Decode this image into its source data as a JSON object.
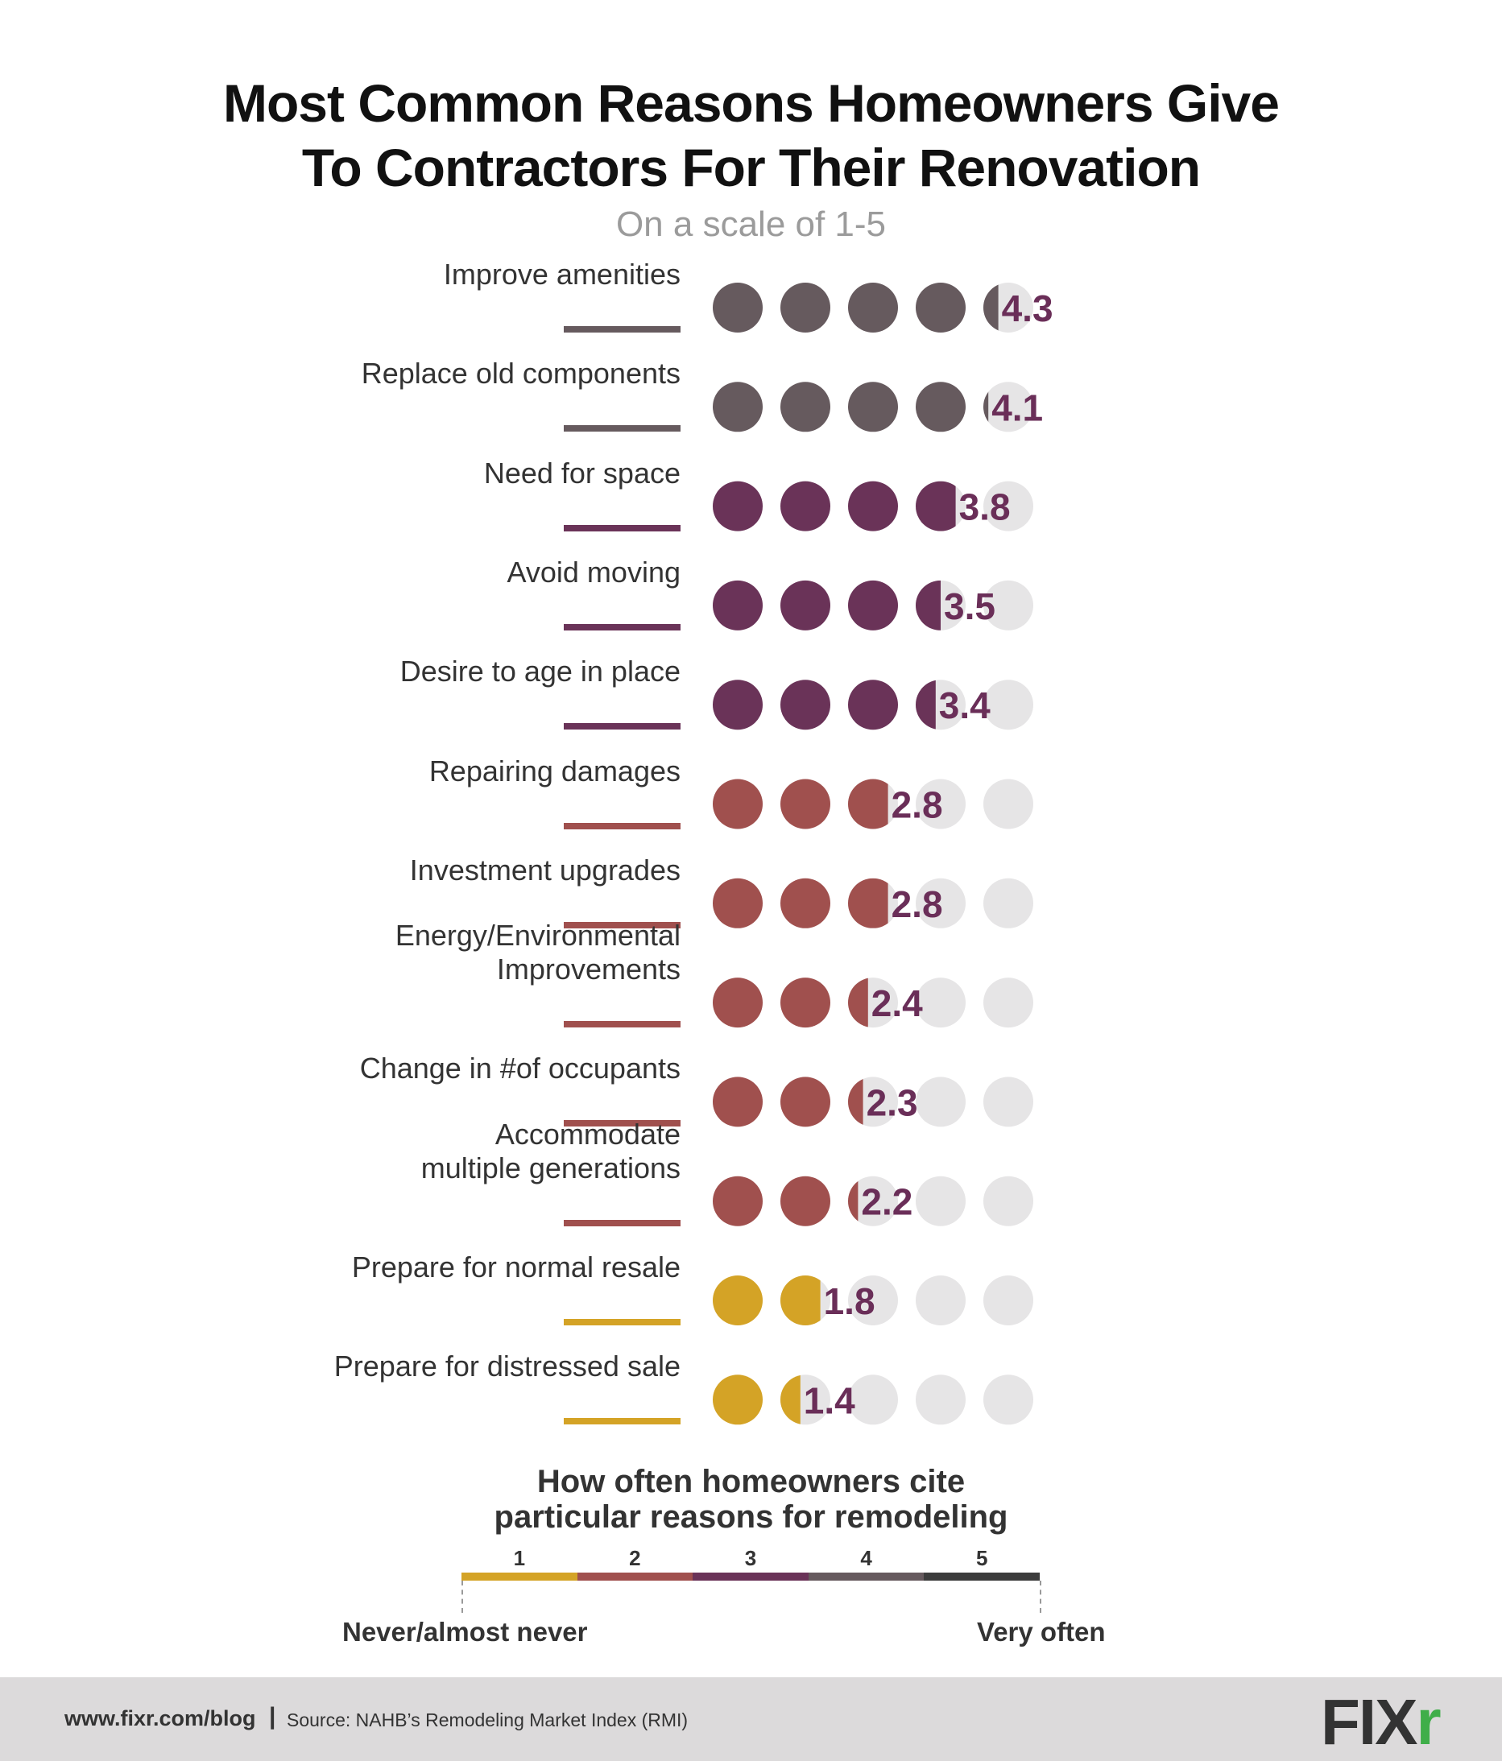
{
  "title_line1": "Most Common Reasons Homeowners Give",
  "title_line2": "To Contractors For Their Renovation",
  "subtitle": "On a scale of 1-5",
  "chart_data": {
    "type": "dot-rating",
    "title": "Most Common Reasons Homeowners Give To Contractors For Their Renovation",
    "subtitle": "On a scale of 1-5",
    "scale_max": 5,
    "categories": [
      "Improve amenities",
      "Replace old components",
      "Need for space",
      "Avoid moving",
      "Desire to age in place",
      "Repairing damages",
      "Investment upgrades",
      "Energy/Environmental Improvements",
      "Change in #of occupants",
      "Accommodate multiple generations",
      "Prepare for normal resale",
      "Prepare for distressed sale"
    ],
    "values": [
      4.3,
      4.1,
      3.8,
      3.5,
      3.4,
      2.8,
      2.8,
      2.4,
      2.3,
      2.2,
      1.8,
      1.4
    ],
    "value_labels": [
      "4.3",
      "4.1",
      "3.8",
      "3.5",
      "3.4",
      "2.8",
      "2.8",
      "2.4",
      "2.3",
      "2.2",
      "1.8",
      "1.4"
    ],
    "label_lines": [
      [
        "Improve amenities"
      ],
      [
        "Replace old components"
      ],
      [
        "Need for space"
      ],
      [
        "Avoid moving"
      ],
      [
        "Desire to age in place"
      ],
      [
        "Repairing damages"
      ],
      [
        "Investment upgrades"
      ],
      [
        "Energy/Environmental",
        "Improvements"
      ],
      [
        "Change in #of occupants"
      ],
      [
        "Accommodate",
        "multiple generations"
      ],
      [
        "Prepare for normal resale"
      ],
      [
        "Prepare for distressed sale"
      ]
    ],
    "level": [
      4,
      4,
      3,
      3,
      3,
      2,
      2,
      2,
      2,
      2,
      1,
      1
    ]
  },
  "legend": {
    "title_line1": "How often homeowners cite",
    "title_line2": "particular reasons for remodeling",
    "levels": [
      "1",
      "2",
      "3",
      "4",
      "5"
    ],
    "low_label": "Never/almost never",
    "high_label": "Very often"
  },
  "colors": {
    "level_1": "#d4a326",
    "level_2": "#a0504e",
    "level_3": "#6a3358",
    "level_4": "#665a5e",
    "level_5": "#3c3c3c",
    "empty_dot": "#e6e5e6",
    "value_text": "#6a2e58"
  },
  "footer": {
    "url": "www.fixr.com/blog",
    "separator": "|",
    "source": "Source: NAHB’s Remodeling Market Index (RMI)",
    "logo_text": "FIX",
    "logo_accent": "r"
  }
}
